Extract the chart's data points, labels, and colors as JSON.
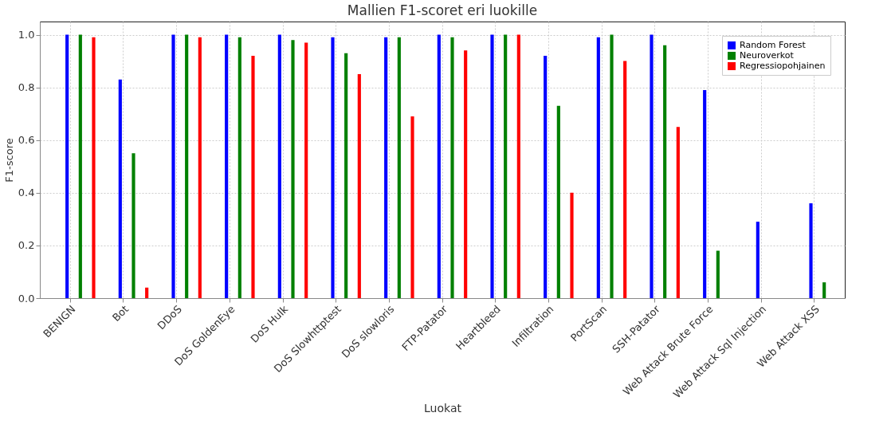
{
  "chart_data": {
    "type": "bar",
    "title": "Mallien F1-scoret eri luokille",
    "xlabel": "Luokat",
    "ylabel": "F1-score",
    "categories": [
      "BENIGN",
      "Bot",
      "DDoS",
      "DoS GoldenEye",
      "DoS Hulk",
      "DoS Slowhttptest",
      "DoS slowloris",
      "FTP-Patator",
      "Heartbleed",
      "Infiltration",
      "PortScan",
      "SSH-Patator",
      "Web Attack Brute Force",
      "Web Attack Sql Injection",
      "Web Attack XSS"
    ],
    "series": [
      {
        "name": "Random Forest",
        "color": "#0000ff",
        "values": [
          1.0,
          0.83,
          1.0,
          1.0,
          1.0,
          0.99,
          0.99,
          1.0,
          1.0,
          0.92,
          0.99,
          1.0,
          0.79,
          0.29,
          0.36
        ]
      },
      {
        "name": "Neuroverkot",
        "color": "#008000",
        "values": [
          1.0,
          0.55,
          1.0,
          0.99,
          0.98,
          0.93,
          0.99,
          0.99,
          1.0,
          0.73,
          1.0,
          0.96,
          0.18,
          0.0,
          0.06
        ]
      },
      {
        "name": "Regressiopohjainen",
        "color": "#ff0000",
        "values": [
          0.99,
          0.04,
          0.99,
          0.92,
          0.97,
          0.85,
          0.69,
          0.94,
          1.0,
          0.4,
          0.9,
          0.65,
          0.0,
          0.0,
          0.0
        ]
      }
    ],
    "ylim": [
      0,
      1.05
    ],
    "yticks": [
      {
        "value": 0,
        "label": "0.0"
      },
      {
        "value": 0.2,
        "label": "0.2"
      },
      {
        "value": 0.4,
        "label": "0.4"
      },
      {
        "value": 0.6,
        "label": "0.6"
      },
      {
        "value": 0.8,
        "label": "0.8"
      },
      {
        "value": 1,
        "label": "1.0"
      }
    ],
    "grid": true,
    "legend": "top right"
  }
}
